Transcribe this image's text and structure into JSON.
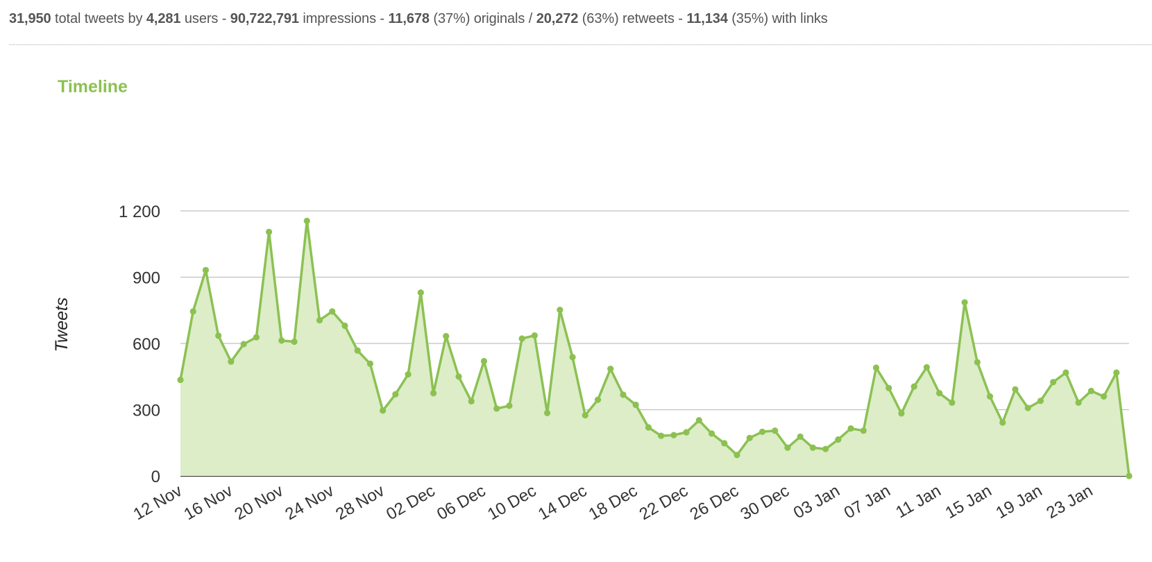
{
  "stats": {
    "total_tweets": "31,950",
    "total_tweets_label": "total tweets by",
    "users": "4,281",
    "users_label": "users -",
    "impressions": "90,722,791",
    "impressions_label": "impressions -",
    "originals": "11,678",
    "originals_label": "(37%) originals /",
    "retweets": "20,272",
    "retweets_label": "(63%) retweets -",
    "links": "11,134",
    "links_label": "(35%) with links"
  },
  "colors": {
    "accent": "#8cc152",
    "line": "#8cc152",
    "area": "#dcedc8",
    "grid": "#c0c0c0"
  },
  "chart_data": {
    "type": "area",
    "title": "Timeline",
    "ylabel": "Tweets",
    "xlabel": "",
    "ylim": [
      0,
      1200
    ],
    "y_ticks": [
      0,
      300,
      600,
      900,
      1200
    ],
    "y_tick_labels": [
      "0",
      "300",
      "600",
      "900",
      "1 200"
    ],
    "x_tick_labels": [
      "12 Nov",
      "16 Nov",
      "20 Nov",
      "24 Nov",
      "28 Nov",
      "02 Dec",
      "06 Dec",
      "10 Dec",
      "14 Dec",
      "18 Dec",
      "22 Dec",
      "26 Dec",
      "30 Dec",
      "03 Jan",
      "07 Jan",
      "11 Jan",
      "15 Jan",
      "19 Jan",
      "23 Jan"
    ],
    "x_start": "12 Nov",
    "grid": true,
    "legend": "none",
    "series": [
      {
        "values": [
          435,
          745,
          932,
          635,
          518,
          597,
          628,
          1105,
          613,
          608,
          1155,
          705,
          745,
          680,
          568,
          508,
          296,
          370,
          460,
          830,
          375,
          633,
          450,
          338,
          520,
          305,
          318,
          622,
          636,
          285,
          752,
          538,
          275,
          345,
          485,
          368,
          322,
          220,
          182,
          185,
          198,
          252,
          192,
          148,
          95,
          172,
          200,
          205,
          128,
          178,
          128,
          122,
          165,
          215,
          205,
          490,
          398,
          283,
          405,
          492,
          375,
          332,
          786,
          515,
          360,
          242,
          392,
          308,
          340,
          425,
          468,
          332,
          385,
          360,
          468,
          0
        ]
      }
    ]
  }
}
